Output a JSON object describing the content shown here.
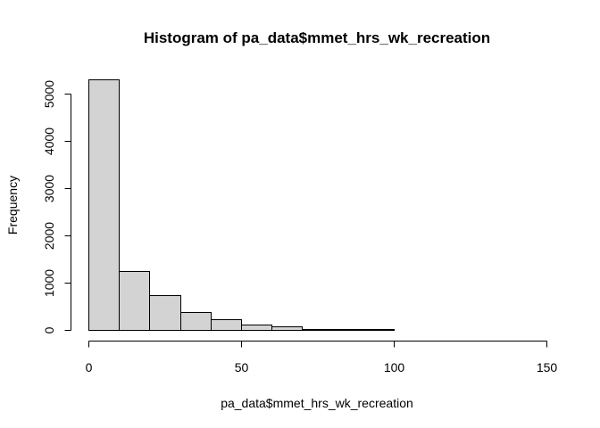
{
  "chart_data": {
    "type": "bar",
    "title": "Histogram of pa_data$mmet_hrs_wk_recreation",
    "xlabel": "pa_data$mmet_hrs_wk_recreation",
    "ylabel": "Frequency",
    "bins": [
      {
        "from": 0,
        "to": 10,
        "count": 5300
      },
      {
        "from": 10,
        "to": 20,
        "count": 1250
      },
      {
        "from": 20,
        "to": 30,
        "count": 740
      },
      {
        "from": 30,
        "to": 40,
        "count": 380
      },
      {
        "from": 40,
        "to": 50,
        "count": 220
      },
      {
        "from": 50,
        "to": 60,
        "count": 110
      },
      {
        "from": 60,
        "to": 70,
        "count": 75
      },
      {
        "from": 70,
        "to": 80,
        "count": 25
      },
      {
        "from": 80,
        "to": 90,
        "count": 20
      },
      {
        "from": 90,
        "to": 100,
        "count": 18
      },
      {
        "from": 100,
        "to": 110,
        "count": 5
      },
      {
        "from": 110,
        "to": 120,
        "count": 4
      },
      {
        "from": 120,
        "to": 130,
        "count": 3
      },
      {
        "from": 130,
        "to": 140,
        "count": 3
      },
      {
        "from": 140,
        "to": 150,
        "count": 2
      }
    ],
    "x_ticks": [
      0,
      50,
      100,
      150
    ],
    "y_ticks": [
      0,
      1000,
      2000,
      3000,
      4000,
      5000
    ],
    "xlim": [
      0,
      150
    ],
    "ylim": [
      0,
      5300
    ],
    "grid": false,
    "bar_color": "#d3d3d3"
  }
}
